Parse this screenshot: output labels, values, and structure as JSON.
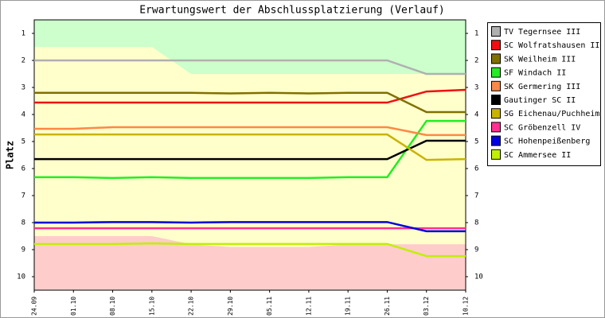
{
  "chart_data": {
    "type": "line",
    "title": "Erwartungswert der Abschlussplatzierung (Verlauf)",
    "y_label": "Platz",
    "categories": [
      "24.09",
      "01.10",
      "08.10",
      "15.10",
      "22.10",
      "29.10",
      "05.11",
      "12.11",
      "19.11",
      "26.11",
      "03.12",
      "10.12"
    ],
    "ylim": [
      0.5,
      10.5
    ],
    "y_inverted": true,
    "yticks": [
      1,
      2,
      3,
      4,
      5,
      6,
      7,
      8,
      9,
      10
    ],
    "zones": {
      "upper": {
        "color": "#ccffcc",
        "values": [
          1.5,
          1.5,
          1.5,
          1.5,
          2.5,
          2.5,
          2.5,
          2.5,
          2.5,
          2.5,
          2.5,
          2.5
        ]
      },
      "middle_color": "#ffffcc",
      "lower": {
        "color": "#ffcccc",
        "values": [
          8.5,
          8.5,
          8.5,
          8.5,
          8.8,
          8.9,
          8.9,
          8.9,
          8.8,
          8.8,
          8.8,
          8.8
        ]
      }
    },
    "series": [
      {
        "name": "TV Tegernsee III",
        "color": "#b0b0b0",
        "values": [
          2.0,
          2.0,
          2.0,
          2.0,
          2.0,
          2.0,
          2.0,
          2.0,
          2.0,
          2.0,
          2.5,
          2.5
        ]
      },
      {
        "name": "SC Wolfratshausen II",
        "color": "#ee1111",
        "values": [
          3.56,
          3.56,
          3.56,
          3.56,
          3.56,
          3.56,
          3.56,
          3.56,
          3.56,
          3.56,
          3.15,
          3.09
        ]
      },
      {
        "name": "SK Weilheim III",
        "color": "#807000",
        "values": [
          3.2,
          3.2,
          3.2,
          3.2,
          3.2,
          3.22,
          3.2,
          3.22,
          3.2,
          3.2,
          3.91,
          3.91
        ]
      },
      {
        "name": "SF Windach II",
        "color": "#22ee22",
        "values": [
          6.32,
          6.32,
          6.35,
          6.32,
          6.35,
          6.35,
          6.35,
          6.35,
          6.32,
          6.32,
          4.24,
          4.24
        ]
      },
      {
        "name": "SK Germering III",
        "color": "#ff8844",
        "values": [
          4.53,
          4.53,
          4.47,
          4.47,
          4.47,
          4.47,
          4.47,
          4.47,
          4.47,
          4.47,
          4.76,
          4.76
        ]
      },
      {
        "name": "Gautinger SC II",
        "color": "#000000",
        "values": [
          5.65,
          5.65,
          5.65,
          5.65,
          5.65,
          5.65,
          5.65,
          5.65,
          5.65,
          5.65,
          4.97,
          4.97
        ]
      },
      {
        "name": "SG Eichenau/Puchheim",
        "color": "#c8b400",
        "values": [
          4.74,
          4.74,
          4.74,
          4.74,
          4.74,
          4.74,
          4.74,
          4.74,
          4.74,
          4.74,
          5.68,
          5.65
        ]
      },
      {
        "name": "SC Gröbenzell IV",
        "color": "#ff3090",
        "values": [
          8.21,
          8.21,
          8.21,
          8.21,
          8.21,
          8.21,
          8.21,
          8.21,
          8.21,
          8.21,
          8.21,
          8.21
        ]
      },
      {
        "name": "SC Hohenpeißenberg",
        "color": "#0000dd",
        "values": [
          8.0,
          8.0,
          7.98,
          7.98,
          8.0,
          7.98,
          7.98,
          7.98,
          7.98,
          7.98,
          8.32,
          8.32
        ]
      },
      {
        "name": "SC Ammersee II",
        "color": "#c0f000",
        "values": [
          8.79,
          8.79,
          8.79,
          8.77,
          8.79,
          8.79,
          8.79,
          8.79,
          8.79,
          8.79,
          9.24,
          9.24
        ]
      }
    ]
  }
}
